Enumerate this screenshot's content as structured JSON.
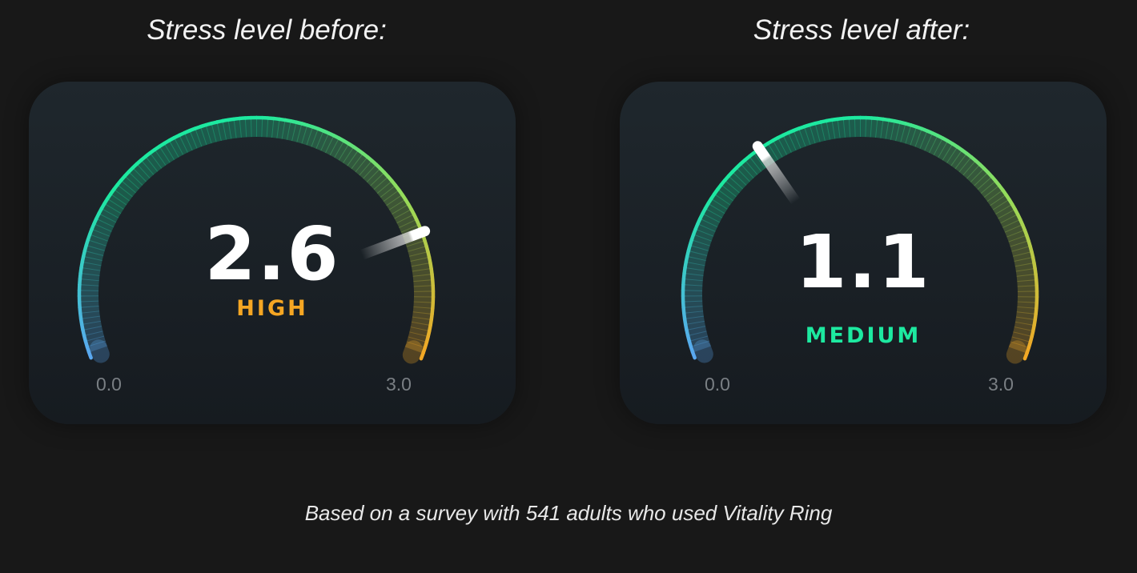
{
  "gauges": [
    {
      "title": "Stress level before:",
      "value": 2.6,
      "value_text": "2.6",
      "level": "HIGH",
      "level_color": "#f5a623",
      "min_label": "0.0",
      "max_label": "3.0",
      "min": 0,
      "max": 3
    },
    {
      "title": "Stress level after:",
      "value": 1.1,
      "value_text": "1.1",
      "level": "MEDIUM",
      "level_color": "#1de9a0",
      "min_label": "0.0",
      "max_label": "3.0",
      "min": 0,
      "max": 3
    }
  ],
  "colors": {
    "scale_low": "#5aa8f0",
    "scale_mid": "#1de9a0",
    "scale_high": "#f5a623"
  },
  "footer": "Based on a survey with 541 adults who used Vitality Ring"
}
